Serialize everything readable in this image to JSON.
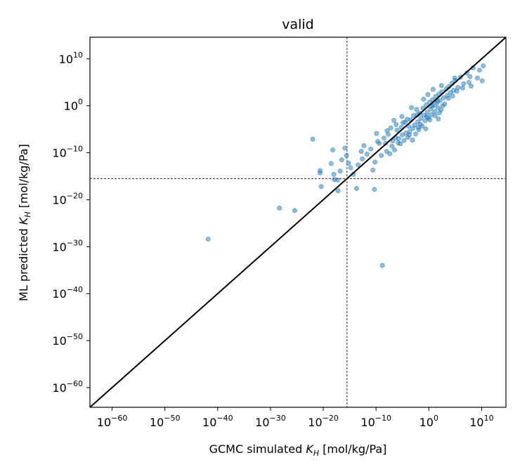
{
  "chart_data": {
    "type": "scatter",
    "title": "valid",
    "xlabel": {
      "main": "GCMC simulated ",
      "sym": "K",
      "sub": "H",
      "tail": " [mol/kg/Pa]"
    },
    "ylabel": {
      "main": "ML predicted ",
      "sym": "K",
      "sub": "H",
      "tail": " [mol/kg/Pa]"
    },
    "scale": "log10",
    "xlim": [
      -64.2,
      14.6
    ],
    "ylim": [
      -64.2,
      14.6
    ],
    "ticks": [
      -60,
      -50,
      -40,
      -30,
      -20,
      -10,
      0,
      10
    ],
    "tick_base": "10",
    "reference_line": "y = x",
    "reference_lines_dashed": {
      "x": -15.5,
      "y": -15.5
    },
    "marker_color": "#1f77b4",
    "marker_alpha": 0.5,
    "grid": false,
    "points_log10": [
      [
        -41.8,
        -28.4
      ],
      [
        -28.3,
        -21.8
      ],
      [
        -25.4,
        -22.3
      ],
      [
        -22.0,
        -7.1
      ],
      [
        -20.6,
        -13.8
      ],
      [
        -20.6,
        -14.3
      ],
      [
        -20.4,
        -17.2
      ],
      [
        -18.2,
        -9.4
      ],
      [
        -18.5,
        -12.3
      ],
      [
        -18.0,
        -14.6
      ],
      [
        -17.9,
        -15.7
      ],
      [
        -17.3,
        -15.8
      ],
      [
        -17.2,
        -18.1
      ],
      [
        -16.5,
        -11.5
      ],
      [
        -16.8,
        -13.9
      ],
      [
        -15.9,
        -9.0
      ],
      [
        -15.6,
        -10.6
      ],
      [
        -15.2,
        -12.2
      ],
      [
        -14.8,
        -13.2
      ],
      [
        -14.3,
        -14.6
      ],
      [
        -13.7,
        -17.6
      ],
      [
        -13.4,
        -12.6
      ],
      [
        -12.8,
        -9.7
      ],
      [
        -12.6,
        -11.3
      ],
      [
        -12.3,
        -8.5
      ],
      [
        -11.7,
        -10.3
      ],
      [
        -10.6,
        -13.7
      ],
      [
        -10.3,
        -17.8
      ],
      [
        -10.2,
        -12.0
      ],
      [
        -9.9,
        -5.9
      ],
      [
        -9.4,
        -8.0
      ],
      [
        -9.0,
        -10.6
      ],
      [
        -8.8,
        -34.0
      ],
      [
        -8.2,
        -8.0
      ],
      [
        -8.0,
        -9.7
      ],
      [
        -7.7,
        -6.1
      ],
      [
        -7.4,
        -10.2
      ],
      [
        -7.0,
        -8.6
      ],
      [
        -6.8,
        -7.5
      ],
      [
        -6.5,
        -9.4
      ],
      [
        -6.3,
        -6.8
      ],
      [
        -6.0,
        -5.2
      ],
      [
        -5.7,
        -7.0
      ],
      [
        -5.4,
        -8.1
      ],
      [
        -5.2,
        -4.6
      ],
      [
        -5.0,
        -6.2
      ],
      [
        -4.7,
        -7.4
      ],
      [
        -4.5,
        -3.5
      ],
      [
        -4.3,
        -5.8
      ],
      [
        -4.0,
        -6.7
      ],
      [
        -3.8,
        -4.4
      ],
      [
        -3.6,
        -5.5
      ],
      [
        -3.4,
        -3.0
      ],
      [
        -3.1,
        -7.3
      ],
      [
        -2.9,
        -2.1
      ],
      [
        -2.7,
        -4.1
      ],
      [
        -2.5,
        -6.0
      ],
      [
        -2.3,
        -0.8
      ],
      [
        -2.1,
        -3.4
      ],
      [
        -1.9,
        -5.1
      ],
      [
        -1.7,
        -1.6
      ],
      [
        -1.5,
        -2.7
      ],
      [
        -1.3,
        -4.3
      ],
      [
        -1.1,
        -0.5
      ],
      [
        -0.9,
        -2.0
      ],
      [
        -0.7,
        -3.2
      ],
      [
        -0.5,
        0.2
      ],
      [
        -0.3,
        -1.4
      ],
      [
        -0.1,
        -2.6
      ],
      [
        0.1,
        0.8
      ],
      [
        0.3,
        -0.7
      ],
      [
        0.5,
        -1.9
      ],
      [
        0.7,
        1.3
      ],
      [
        0.9,
        0.1
      ],
      [
        1.1,
        -1.2
      ],
      [
        1.3,
        2.0
      ],
      [
        1.5,
        0.6
      ],
      [
        1.7,
        -0.4
      ],
      [
        1.9,
        2.5
      ],
      [
        2.1,
        1.1
      ],
      [
        2.3,
        -0.9
      ],
      [
        2.5,
        3.0
      ],
      [
        2.8,
        1.7
      ],
      [
        3.0,
        0.4
      ],
      [
        3.3,
        3.6
      ],
      [
        3.5,
        2.2
      ],
      [
        3.8,
        4.1
      ],
      [
        4.1,
        2.8
      ],
      [
        4.4,
        4.8
      ],
      [
        4.7,
        3.3
      ],
      [
        5.0,
        5.4
      ],
      [
        5.5,
        3.9
      ],
      [
        6.0,
        6.1
      ],
      [
        6.6,
        4.7
      ],
      [
        7.2,
        7.0
      ],
      [
        7.8,
        6.2
      ],
      [
        8.4,
        8.1
      ],
      [
        8.0,
        4.2
      ],
      [
        9.2,
        5.9
      ],
      [
        9.6,
        7.6
      ],
      [
        10.3,
        8.5
      ],
      [
        10.1,
        5.3
      ],
      [
        -3.0,
        -4.8
      ],
      [
        -1.6,
        -3.9
      ],
      [
        -0.4,
        -2.3
      ],
      [
        0.6,
        -0.1
      ],
      [
        1.6,
        1.0
      ],
      [
        -2.2,
        -1.9
      ],
      [
        -4.1,
        -2.9
      ],
      [
        -6.2,
        -4.0
      ],
      [
        -7.9,
        -5.3
      ],
      [
        -5.8,
        -7.9
      ],
      [
        -3.7,
        -6.2
      ],
      [
        -2.0,
        -4.6
      ],
      [
        0.2,
        -3.0
      ],
      [
        1.2,
        -2.1
      ],
      [
        2.0,
        -1.5
      ],
      [
        2.6,
        0.0
      ],
      [
        3.7,
        1.6
      ],
      [
        4.5,
        2.1
      ],
      [
        5.3,
        3.1
      ],
      [
        -1.0,
        1.4
      ],
      [
        -0.2,
        2.4
      ],
      [
        0.8,
        3.5
      ],
      [
        -3.3,
        -0.4
      ],
      [
        -5.1,
        -2.3
      ],
      [
        -8.5,
        -6.9
      ],
      [
        -9.7,
        -7.6
      ],
      [
        -11.0,
        -9.2
      ],
      [
        -6.6,
        -3.1
      ],
      [
        6.4,
        3.8
      ],
      [
        7.6,
        5.0
      ],
      [
        4.9,
        5.9
      ],
      [
        2.4,
        4.3
      ],
      [
        -0.6,
        -4.9
      ],
      [
        1.8,
        -2.8
      ],
      [
        -4.9,
        -3.6
      ],
      [
        -7.2,
        -4.7
      ]
    ]
  }
}
